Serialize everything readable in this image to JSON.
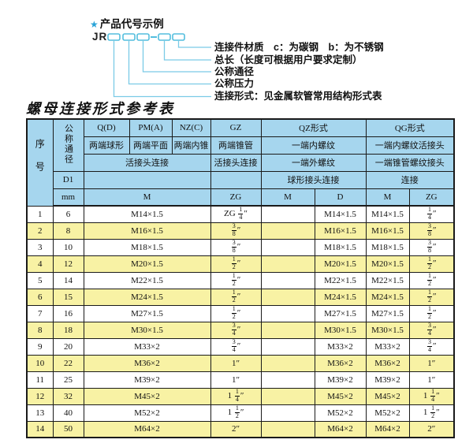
{
  "colors": {
    "header-bg": "#a6d6ee",
    "row-alt-bg": "#f8f2a4",
    "line": "#7bcbe6",
    "box-stroke": "#53bede",
    "star": "#29a3d8",
    "border": "#1a1a1a"
  },
  "diagram": {
    "star": "★",
    "title": "产品代号示例",
    "code_prefix": "JR",
    "labels": [
      "连接件材质　c：为碳钢　b：为不锈钢",
      "总长（长度可根据用户要求定制）",
      "公称通径",
      "公称压力",
      "连接形式：见金属软管常用结构形式表"
    ]
  },
  "table_title": "螺母连接形式参考表",
  "table": {
    "header": {
      "seq": "序号",
      "bore": "公称通径",
      "d1": "D1",
      "mm": "mm",
      "q": "Q(D)",
      "pm": "PM(A)",
      "nz": "NZ(C)",
      "gz": "GZ",
      "qz": "QZ形式",
      "qg": "QG形式",
      "q2": "两端球形",
      "pm2": "两端平面",
      "nz2": "两端内锥",
      "gz2": "两端锥管",
      "qz2": "一端内螺纹",
      "qg2": "一端内螺纹活接头",
      "q3": "活接头连接",
      "gz3": "活接头连接",
      "qz3": "一端外螺纹",
      "qg3": "一端锥管螺纹接头",
      "qz4": "球形接头连接",
      "qg4": "连接",
      "unit_m": "M",
      "unit_zg": "ZG",
      "qz_m": "M",
      "qz_d": "D",
      "qg_m": "M",
      "qg_zg": "ZG"
    },
    "rows": [
      [
        "1",
        "6",
        "M14×1.5",
        "ZG 1/4″",
        "",
        "M14×1.5",
        "M14×1.5",
        "1/4″"
      ],
      [
        "2",
        "8",
        "M16×1.5",
        "3/8″",
        "",
        "M16×1.5",
        "M16×1.5",
        "3/8″"
      ],
      [
        "3",
        "10",
        "M18×1.5",
        "3/8″",
        "",
        "M18×1.5",
        "M18×1.5",
        "3/8″"
      ],
      [
        "4",
        "12",
        "M20×1.5",
        "1/2″",
        "",
        "M20×1.5",
        "M20×1.5",
        "1/2″"
      ],
      [
        "5",
        "14",
        "M22×1.5",
        "1/2″",
        "",
        "M22×1.5",
        "M22×1.5",
        "1/2″"
      ],
      [
        "6",
        "15",
        "M24×1.5",
        "1/2″",
        "",
        "M24×1.5",
        "M24×1.5",
        "1/2″"
      ],
      [
        "7",
        "16",
        "M27×1.5",
        "1/2″",
        "",
        "M27×1.5",
        "M27×1.5",
        "1/2″"
      ],
      [
        "8",
        "18",
        "M30×1.5",
        "3/4″",
        "",
        "M30×1.5",
        "M30×1.5",
        "3/4″"
      ],
      [
        "9",
        "20",
        "M33×2",
        "3/4″",
        "",
        "M33×2",
        "M33×2",
        "3/4″"
      ],
      [
        "10",
        "22",
        "M36×2",
        "1″",
        "",
        "M36×2",
        "M36×2",
        "1″"
      ],
      [
        "11",
        "25",
        "M39×2",
        "1″",
        "",
        "M39×2",
        "M39×2",
        "1″"
      ],
      [
        "12",
        "32",
        "M45×2",
        "1 1/4″",
        "",
        "M45×2",
        "M45×2",
        "1 1/4″"
      ],
      [
        "13",
        "40",
        "M52×2",
        "1 1/2″",
        "",
        "M52×2",
        "M52×2",
        "1 1/2″"
      ],
      [
        "14",
        "50",
        "M64×2",
        "2″",
        "",
        "M64×2",
        "M64×2",
        "2″"
      ]
    ],
    "cell_names": [
      "cell-seq",
      "cell-bore",
      "cell-m-thread",
      "cell-zg-thread",
      "cell-qz-m",
      "cell-qz-d",
      "cell-qg-m",
      "cell-qg-zg"
    ]
  }
}
